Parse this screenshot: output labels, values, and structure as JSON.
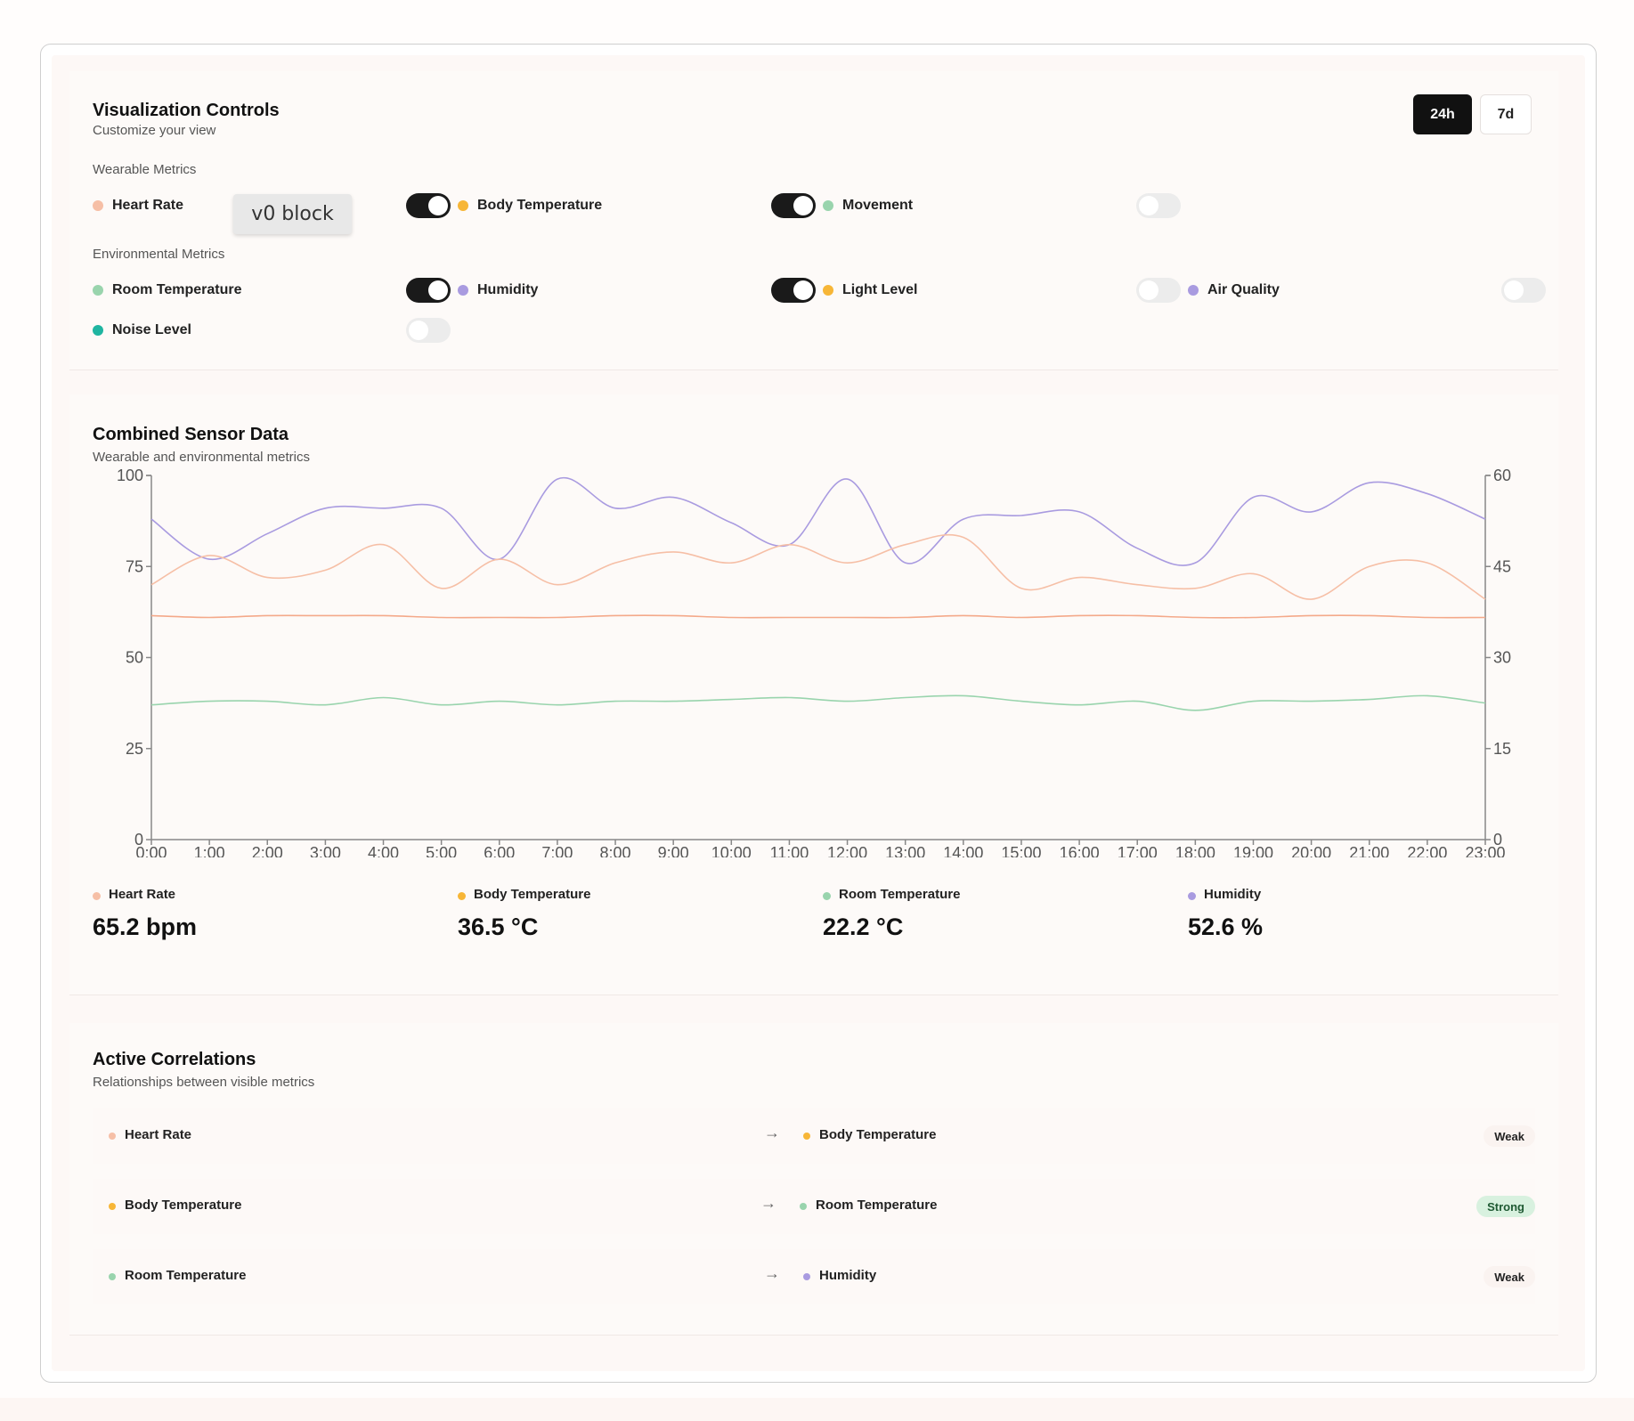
{
  "controls": {
    "title": "Visualization Controls",
    "subtitle": "Customize your view",
    "range_buttons": [
      {
        "label": "24h",
        "active": true
      },
      {
        "label": "7d",
        "active": false
      }
    ],
    "wearable_label": "Wearable Metrics",
    "environmental_label": "Environmental Metrics",
    "wearable": [
      {
        "label": "Heart Rate",
        "color": "#f6bfa6",
        "enabled": true
      },
      {
        "label": "Body Temperature",
        "color": "#f7b637",
        "enabled": true
      },
      {
        "label": "Movement",
        "color": "#99d4ad",
        "enabled": false
      }
    ],
    "environmental": [
      {
        "label": "Room Temperature",
        "color": "#99d4ad",
        "enabled": true
      },
      {
        "label": "Humidity",
        "color": "#a99be0",
        "enabled": true
      },
      {
        "label": "Light Level",
        "color": "#f7b637",
        "enabled": false
      },
      {
        "label": "Air Quality",
        "color": "#a99be0",
        "enabled": false
      },
      {
        "label": "Noise Level",
        "color": "#1fb5a1",
        "enabled": false
      }
    ],
    "overlay_label": "v0 block"
  },
  "chart_section": {
    "title": "Combined Sensor Data",
    "subtitle": "Wearable and environmental metrics"
  },
  "chart_data": {
    "type": "line",
    "x": [
      "0:00",
      "1:00",
      "2:00",
      "3:00",
      "4:00",
      "5:00",
      "6:00",
      "7:00",
      "8:00",
      "9:00",
      "10:00",
      "11:00",
      "12:00",
      "13:00",
      "14:00",
      "15:00",
      "16:00",
      "17:00",
      "18:00",
      "19:00",
      "20:00",
      "21:00",
      "22:00",
      "23:00"
    ],
    "left_axis": {
      "ylim": [
        0,
        100
      ],
      "ticks": [
        0,
        25,
        50,
        75,
        100
      ]
    },
    "right_axis": {
      "ylim": [
        0,
        60
      ],
      "ticks": [
        0,
        15,
        30,
        45,
        60
      ]
    },
    "series": [
      {
        "color": "#a99be0",
        "axis": "left",
        "values": [
          88,
          77,
          84,
          91,
          91,
          91,
          77,
          99,
          91,
          94,
          87,
          81,
          99,
          76,
          88,
          89,
          90,
          80,
          76,
          94,
          90,
          98,
          95,
          88
        ]
      },
      {
        "color": "#f6bfa6",
        "axis": "left",
        "values": [
          70,
          78,
          72,
          74,
          81,
          69,
          77,
          70,
          76,
          79,
          76,
          81,
          76,
          81,
          83,
          69,
          72,
          70,
          69,
          73,
          66,
          75,
          76,
          66
        ]
      },
      {
        "color": "#f4a98a",
        "axis": "left",
        "values": [
          61.5,
          61,
          61.5,
          61.5,
          61.5,
          61,
          61,
          61,
          61.5,
          61.5,
          61,
          61,
          61,
          61,
          61.5,
          61,
          61.5,
          61.5,
          61,
          61,
          61.5,
          61.5,
          61,
          61
        ]
      },
      {
        "color": "#99d4ad",
        "axis": "left",
        "values": [
          37,
          38,
          38,
          37,
          39,
          37,
          38,
          37,
          38,
          38,
          38.5,
          39,
          38,
          39,
          39.5,
          38,
          37,
          38,
          35.5,
          38,
          38,
          38.5,
          39.5,
          37.5
        ]
      }
    ]
  },
  "stats": [
    {
      "label": "Heart Rate",
      "color": "#f6bfa6",
      "value": "65.2 bpm"
    },
    {
      "label": "Body Temperature",
      "color": "#f7b637",
      "value": "36.5 °C"
    },
    {
      "label": "Room Temperature",
      "color": "#99d4ad",
      "value": "22.2 °C"
    },
    {
      "label": "Humidity",
      "color": "#a99be0",
      "value": "52.6 %"
    }
  ],
  "correlations": {
    "title": "Active Correlations",
    "subtitle": "Relationships between visible metrics",
    "arrow": "→",
    "rows": [
      {
        "from": "Heart Rate",
        "from_color": "#f6bfa6",
        "to": "Body Temperature",
        "to_color": "#f7b637",
        "strength": "Weak"
      },
      {
        "from": "Body Temperature",
        "from_color": "#f7b637",
        "to": "Room Temperature",
        "to_color": "#99d4ad",
        "strength": "Strong"
      },
      {
        "from": "Room Temperature",
        "from_color": "#99d4ad",
        "to": "Humidity",
        "to_color": "#a99be0",
        "strength": "Weak"
      }
    ]
  }
}
